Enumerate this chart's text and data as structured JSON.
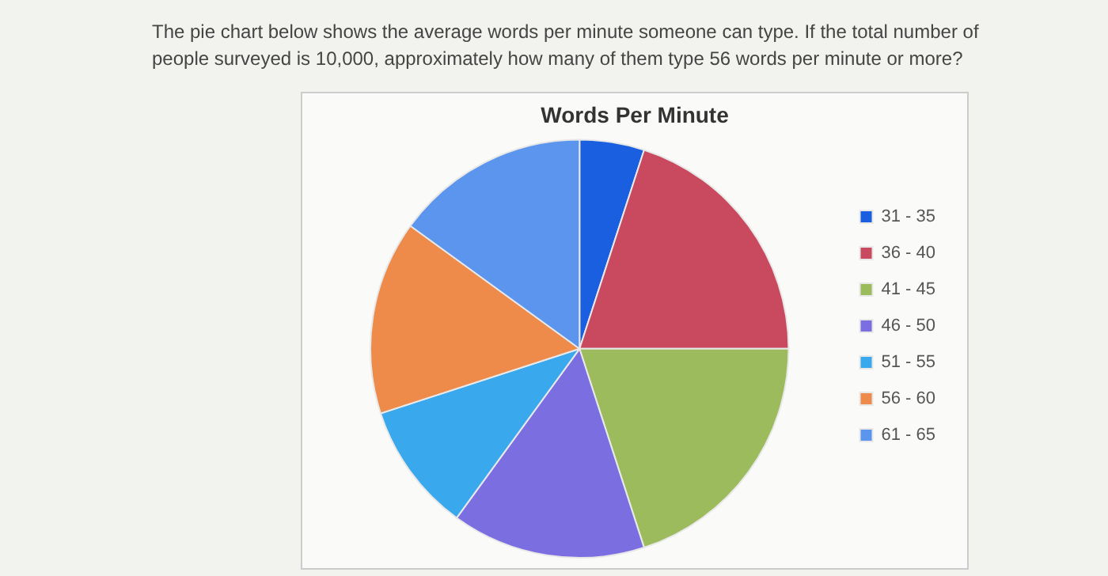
{
  "chart_data": {
    "type": "pie",
    "title": "Words Per Minute",
    "categories": [
      "31 - 35",
      "36 - 40",
      "41 - 45",
      "46 - 50",
      "51 - 55",
      "56 - 60",
      "61 - 65"
    ],
    "values": [
      5,
      20,
      20,
      15,
      10,
      15,
      15
    ],
    "colors": [
      "#1a5fe0",
      "#c94a5e",
      "#9bbb5c",
      "#7b6ee0",
      "#3aa8ec",
      "#ee8a4a",
      "#5b95ee"
    ],
    "legend": "right",
    "annotations": [
      "The pie chart below shows the average words per minute someone can type. If the total number of people surveyed is 10,000, approximately how many of them type 56 words per minute or more?"
    ]
  }
}
